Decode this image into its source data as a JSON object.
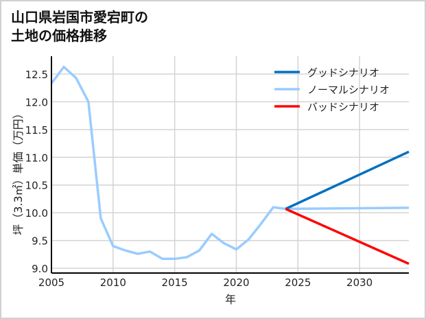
{
  "title": "山口県岩国市愛宕町の\n土地の価格推移",
  "chart_data": {
    "type": "line",
    "title": "山口県岩国市愛宕町の土地の価格推移",
    "xlabel": "年",
    "ylabel": "坪（3.3㎡）単価（万円）",
    "xlim": [
      2005,
      2034
    ],
    "ylim": [
      8.95,
      12.8
    ],
    "grid": true,
    "legend_position": "upper right",
    "x_ticks": [
      2005,
      2010,
      2015,
      2020,
      2025,
      2030
    ],
    "x_tick_labels": [
      "2005",
      "2010",
      "2015",
      "2020",
      "2025",
      "2030"
    ],
    "y_ticks": [
      9.0,
      9.5,
      10.0,
      10.5,
      11.0,
      11.5,
      12.0,
      12.5
    ],
    "y_tick_labels": [
      "9.0",
      "9.5",
      "10.0",
      "10.5",
      "11.0",
      "11.5",
      "12.0",
      "12.5"
    ],
    "series": [
      {
        "name": "グッドシナリオ",
        "color": "#0070c0",
        "x": [
          2024,
          2034
        ],
        "values": [
          10.07,
          11.1
        ]
      },
      {
        "name": "ノーマルシナリオ",
        "color": "#99ccff",
        "x": [
          2005,
          2006,
          2007,
          2008,
          2009,
          2010,
          2011,
          2012,
          2013,
          2014,
          2015,
          2016,
          2017,
          2018,
          2019,
          2020,
          2021,
          2022,
          2023,
          2024,
          2034
        ],
        "values": [
          12.33,
          12.63,
          12.43,
          12.0,
          9.9,
          9.4,
          9.32,
          9.26,
          9.3,
          9.17,
          9.17,
          9.2,
          9.32,
          9.62,
          9.45,
          9.34,
          9.52,
          9.8,
          10.1,
          10.07,
          10.09
        ]
      },
      {
        "name": "バッドシナリオ",
        "color": "#ff0000",
        "x": [
          2024,
          2034
        ],
        "values": [
          10.07,
          9.08
        ]
      }
    ]
  }
}
